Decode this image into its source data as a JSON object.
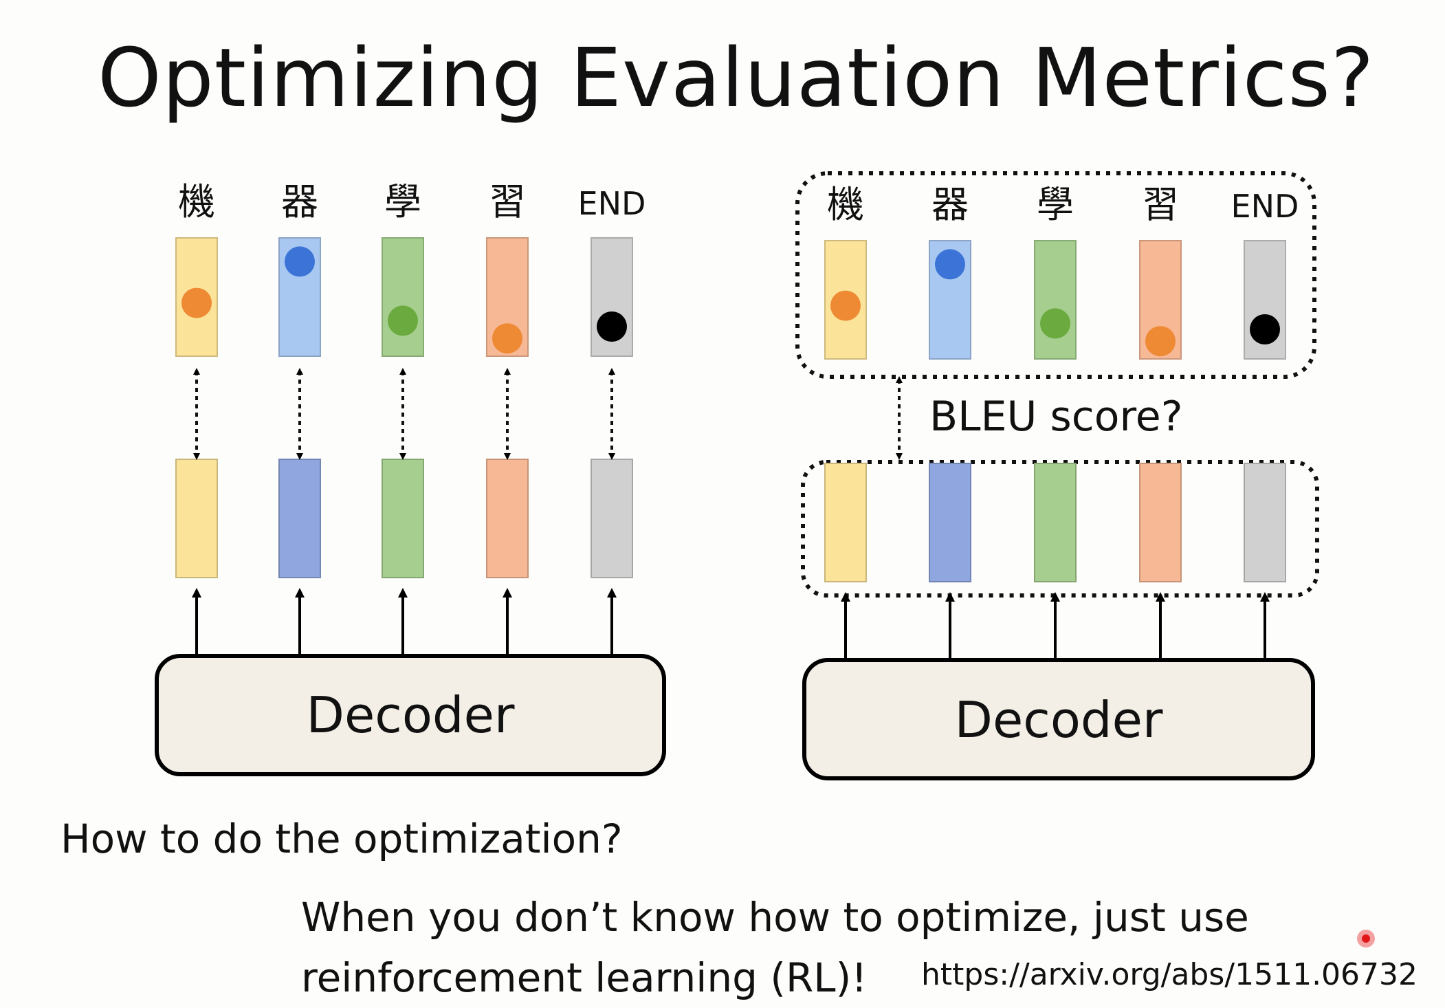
{
  "slide": {
    "title": "Optimizing Evaluation Metrics?",
    "question": "How to do the optimization?",
    "answer_line1": "When you don’t know how to optimize, just use",
    "answer_line2": "reinforcement learning (RL)!",
    "reference_url": "https://arxiv.org/abs/1511.06732"
  },
  "diagram": {
    "tokens": [
      "機",
      "器",
      "學",
      "習",
      "END"
    ],
    "token_colors": [
      "#fbe39a",
      "#a9c8f1",
      "#a6cf8f",
      "#f7b896",
      "#d0d0d0"
    ],
    "target_colors": [
      "#fbe39a",
      "#90a6df",
      "#a6cf8f",
      "#f7b896",
      "#d0d0d0"
    ],
    "dot_colors": [
      "#ee8a33",
      "#3b73d6",
      "#6aaa3e",
      "#ee8a33",
      "#000000"
    ],
    "dot_levels": [
      0.55,
      0.2,
      0.7,
      0.85,
      0.75
    ],
    "decoder_label": "Decoder",
    "metric_label": "BLEU score?"
  }
}
